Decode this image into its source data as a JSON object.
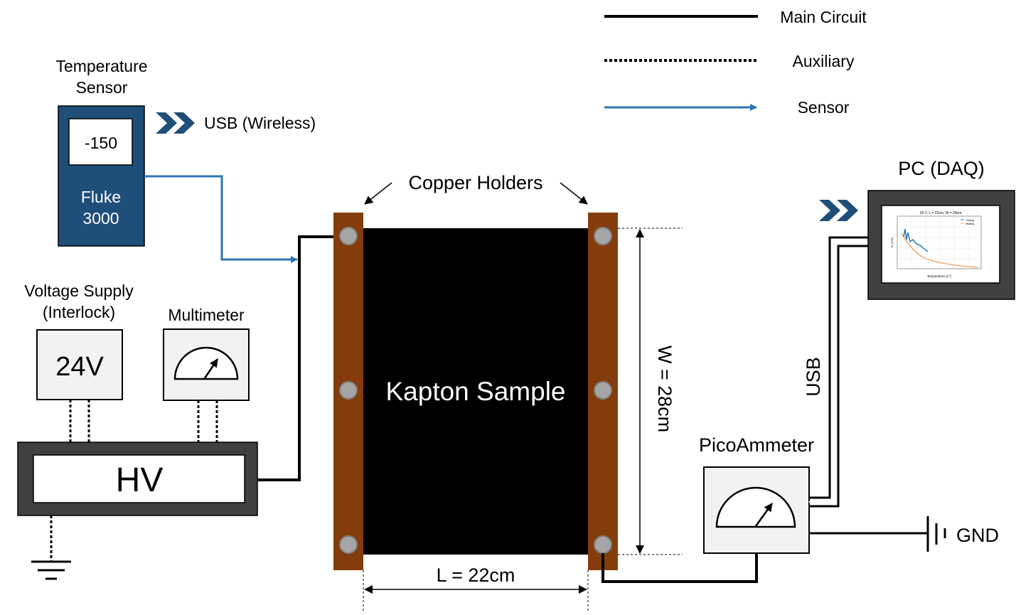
{
  "legend": {
    "main_circuit": "Main Circuit",
    "auxiliary": "Auxiliary",
    "sensor": "Sensor"
  },
  "temperature_sensor": {
    "title_line1": "Temperature",
    "title_line2": "Sensor",
    "display_value": "-150",
    "brand_line1": "Fluke",
    "brand_line2": "3000",
    "link_label": "USB (Wireless)"
  },
  "voltage_supply": {
    "title_line1": "Voltage Supply",
    "title_line2": "(Interlock)",
    "value": "24V"
  },
  "multimeter": {
    "title": "Multimeter"
  },
  "hv": {
    "label": "HV"
  },
  "sample": {
    "label": "Kapton Sample",
    "holders_label": "Copper Holders",
    "width_label": "W = 28cm",
    "length_label": "L = 22cm"
  },
  "picoammeter": {
    "title": "PicoAmmeter",
    "usb_label": "USB"
  },
  "ground": {
    "label": "GND"
  },
  "pc": {
    "title": "PC (DAQ)",
    "plot_title": "25 V, L = 22cm, W = 28cm",
    "plot_xlabel": "Temperature (C°)",
    "plot_ylabel": "R, (GΩ)",
    "legend_cooling": "Cooling",
    "legend_heating": "Heating"
  },
  "colors": {
    "copper": "#843c0c",
    "sensor_blue": "#2e75b6",
    "fluke_blue": "#1f4e79",
    "device_gray": "#f2f2f2",
    "frame_dark": "#404040",
    "plot_orange": "#f4a261",
    "plot_blue": "#1f77b4"
  }
}
